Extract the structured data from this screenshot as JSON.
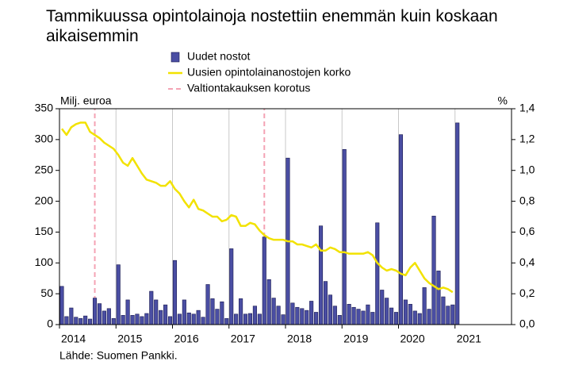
{
  "chart_data": {
    "type": "combo",
    "title": "Tammikuussa opintolainoja nostettiin enemmän kuin koskaan aikaisemmin",
    "ylabel": "Milj. euroa",
    "y2label": "%",
    "source": "Lähde: Suomen Pankki.",
    "categories": [
      "2014",
      null,
      null,
      null,
      null,
      null,
      null,
      null,
      null,
      null,
      null,
      null,
      "2015",
      null,
      null,
      null,
      null,
      null,
      null,
      null,
      null,
      null,
      null,
      null,
      "2016",
      null,
      null,
      null,
      null,
      null,
      null,
      null,
      null,
      null,
      null,
      null,
      "2017",
      null,
      null,
      null,
      null,
      null,
      null,
      null,
      null,
      null,
      null,
      null,
      "2018",
      null,
      null,
      null,
      null,
      null,
      null,
      null,
      null,
      null,
      null,
      null,
      "2019",
      null,
      null,
      null,
      null,
      null,
      null,
      null,
      null,
      null,
      null,
      null,
      "2020",
      null,
      null,
      null,
      null,
      null,
      null,
      null,
      null,
      null,
      null,
      null,
      "2021",
      null,
      null,
      null,
      null,
      null,
      null,
      null,
      null,
      null,
      null,
      null
    ],
    "series": [
      {
        "name": "Uudet nostot",
        "type": "bar",
        "color": "#4a4ea3",
        "values": [
          62,
          13,
          27,
          12,
          10,
          14,
          9,
          43,
          34,
          22,
          26,
          10,
          97,
          15,
          40,
          15,
          17,
          13,
          18,
          54,
          40,
          23,
          32,
          13,
          104,
          17,
          40,
          19,
          17,
          23,
          12,
          65,
          42,
          25,
          37,
          10,
          123,
          17,
          42,
          17,
          18,
          30,
          17,
          142,
          73,
          43,
          30,
          16,
          270,
          35,
          28,
          26,
          23,
          38,
          20,
          160,
          70,
          48,
          30,
          15,
          284,
          33,
          28,
          25,
          22,
          32,
          20,
          165,
          56,
          43,
          27,
          20,
          308,
          40,
          33,
          22,
          18,
          60,
          25,
          176,
          87,
          45,
          30,
          32,
          327,
          null,
          null,
          null,
          null,
          null,
          null,
          null,
          null,
          null,
          null,
          null
        ]
      },
      {
        "name": "Uusien opintolainanostojen korko",
        "type": "line",
        "axis": "y2",
        "color": "#f2e200",
        "values": [
          1.27,
          1.23,
          1.28,
          1.3,
          1.31,
          1.31,
          1.25,
          1.23,
          1.21,
          1.18,
          1.16,
          1.14,
          1.1,
          1.05,
          1.03,
          1.08,
          1.03,
          0.98,
          0.94,
          0.93,
          0.92,
          0.9,
          0.9,
          0.93,
          0.88,
          0.85,
          0.8,
          0.76,
          0.81,
          0.75,
          0.74,
          0.72,
          0.7,
          0.7,
          0.67,
          0.68,
          0.71,
          0.7,
          0.64,
          0.64,
          0.66,
          0.65,
          0.61,
          0.58,
          0.56,
          0.55,
          0.55,
          0.55,
          0.54,
          0.54,
          0.52,
          0.52,
          0.51,
          0.5,
          0.52,
          0.48,
          0.48,
          0.5,
          0.49,
          0.47,
          0.47,
          0.46,
          0.46,
          0.46,
          0.46,
          0.47,
          0.45,
          0.4,
          0.37,
          0.35,
          0.36,
          0.35,
          0.33,
          0.32,
          0.37,
          0.4,
          0.35,
          0.3,
          0.27,
          0.25,
          0.23,
          0.24,
          0.23,
          0.21,
          null,
          null,
          null,
          null,
          null,
          null,
          null,
          null,
          null,
          null,
          null,
          null
        ]
      },
      {
        "name": "Valtiontakauksen korotus",
        "type": "vline",
        "color": "#f4a3b4",
        "values": [
          null,
          null,
          null,
          null,
          null,
          null,
          null,
          350,
          null,
          null,
          null,
          null,
          null,
          null,
          null,
          null,
          null,
          null,
          null,
          null,
          null,
          null,
          null,
          null,
          null,
          null,
          null,
          null,
          null,
          null,
          null,
          null,
          null,
          null,
          null,
          null,
          null,
          null,
          null,
          null,
          null,
          null,
          null,
          350,
          null,
          null,
          null,
          null,
          null,
          null,
          null,
          null,
          null,
          null,
          null,
          null,
          null,
          null,
          null,
          null,
          null,
          null,
          null,
          null,
          null,
          null,
          null,
          null,
          null,
          null,
          null,
          null,
          null,
          null,
          null,
          null,
          null,
          null,
          null,
          null,
          null,
          null,
          null,
          null,
          null,
          null,
          null,
          null,
          null,
          null,
          null,
          null,
          null,
          null,
          null,
          null
        ]
      }
    ],
    "ylim": [
      0,
      350
    ],
    "yticks": [
      0,
      50,
      100,
      150,
      200,
      250,
      300,
      350
    ],
    "y2lim": [
      0,
      1.4
    ],
    "y2ticks": [
      {
        "value": 0,
        "label": "0,0"
      },
      {
        "value": 0.2,
        "label": "0,2"
      },
      {
        "value": 0.4,
        "label": "0,4"
      },
      {
        "value": 0.6,
        "label": "0,6"
      },
      {
        "value": 0.8,
        "label": "0,8"
      },
      {
        "value": 1.0,
        "label": "1,0"
      },
      {
        "value": 1.2,
        "label": "1,2"
      },
      {
        "value": 1.4,
        "label": "1,4"
      }
    ],
    "grid": true
  }
}
